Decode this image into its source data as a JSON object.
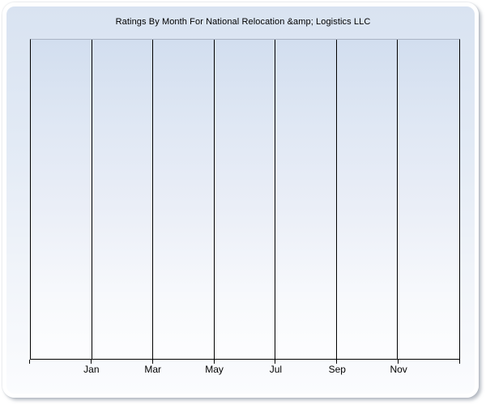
{
  "window": {
    "background_color": "#ffffff"
  },
  "card": {
    "background_top_color": "#d9e3f1",
    "background_bottom_color": "#fbfcfe",
    "border_color": "#ffffff",
    "shadow_color": "#7d8796"
  },
  "chart_data": {
    "type": "line",
    "title": "Ratings By Month For National Relocation &amp; Logistics LLC",
    "categories": [
      "Jan",
      "Mar",
      "May",
      "Jul",
      "Sep",
      "Nov"
    ],
    "series": [],
    "xlabel": "",
    "ylabel": "",
    "x_intervals": 7,
    "grid": "vertical-only",
    "legend": "none",
    "has_data_points": false,
    "plot_background_top_color": "#d2deef",
    "plot_background_bottom_color": "#fdfdfe",
    "grid_color": "#000000",
    "axis_color": "#000000",
    "plot_top_border_color": "#aab3c4",
    "label_color": "#000000"
  }
}
